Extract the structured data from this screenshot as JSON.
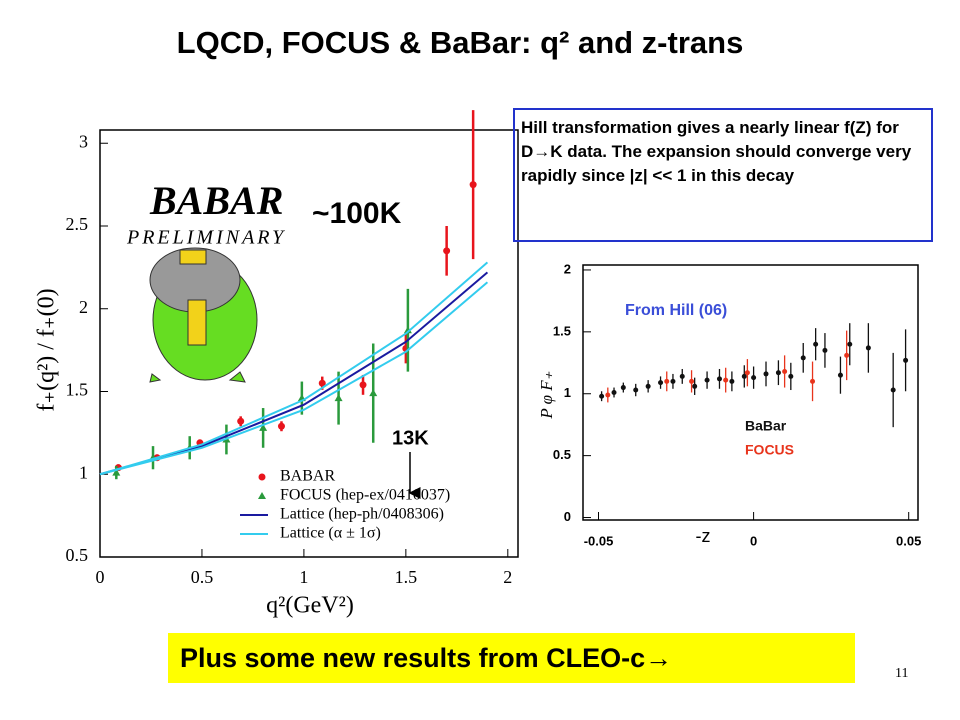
{
  "title": "LQCD, FOCUS & BaBar: q² and z-trans",
  "note": "Hill transformation gives a nearly linear f(Z) for D→K data. The expansion should converge very rapidly since |z| << 1 in this decay",
  "footer": "Plus some new results from CLEO-c→",
  "page_number": "11",
  "chart_data": [
    {
      "type": "scatter",
      "logo": [
        "BABAR",
        "PRELIMINARY"
      ],
      "xlabel": "q²(GeV²)",
      "ylabel": "f₊(q²) / f₊(0)",
      "annotations": [
        "~100K",
        "13K"
      ],
      "xlim": [
        0,
        2.05
      ],
      "ylim": [
        0.5,
        3.08
      ],
      "xticks": [
        0,
        0.5,
        1,
        1.5,
        2
      ],
      "yticks": [
        0.5,
        1,
        1.5,
        2,
        2.5,
        3
      ],
      "series": [
        {
          "name": "BABAR",
          "color": "#e8141c",
          "marker": "circle",
          "x": [
            0.09,
            0.28,
            0.49,
            0.69,
            0.89,
            1.09,
            1.29,
            1.5,
            1.7,
            1.83
          ],
          "values": [
            1.04,
            1.1,
            1.19,
            1.32,
            1.29,
            1.55,
            1.54,
            1.76,
            2.35,
            2.75
          ],
          "errors": [
            0.02,
            0.02,
            0.02,
            0.03,
            0.03,
            0.04,
            0.06,
            0.09,
            0.15,
            0.45
          ]
        },
        {
          "name": "FOCUS (hep-ex/0410037)",
          "color": "#2a9a3c",
          "marker": "triangle",
          "x": [
            0.08,
            0.26,
            0.44,
            0.62,
            0.8,
            0.99,
            1.17,
            1.34,
            1.51
          ],
          "values": [
            1.01,
            1.1,
            1.16,
            1.21,
            1.28,
            1.46,
            1.46,
            1.49,
            1.87
          ],
          "errors": [
            0.04,
            0.07,
            0.07,
            0.09,
            0.12,
            0.1,
            0.16,
            0.3,
            0.25
          ]
        },
        {
          "name": "Lattice (hep-ph/0408306)",
          "color": "#1a1aa0",
          "marker": "line",
          "x": [
            0,
            0.5,
            1,
            1.5,
            1.9
          ],
          "values": [
            1.0,
            1.17,
            1.42,
            1.8,
            2.22
          ]
        },
        {
          "name": "Lattice (α ± 1σ)",
          "color": "#33ccee",
          "marker": "band",
          "x": [
            0,
            0.5,
            1,
            1.5,
            1.9
          ],
          "upper": [
            1.0,
            1.18,
            1.45,
            1.85,
            2.28
          ],
          "lower": [
            1.0,
            1.16,
            1.39,
            1.74,
            2.16
          ]
        }
      ]
    },
    {
      "type": "scatter",
      "annotations": [
        "From Hill (06)"
      ],
      "xlabel": "-z",
      "ylabel": "P φ F₊",
      "xlim": [
        -0.055,
        0.053
      ],
      "ylim": [
        -0.02,
        2.04
      ],
      "xticks": [
        -0.05,
        0,
        0.05
      ],
      "yticks": [
        0,
        0.5,
        1,
        1.5,
        2
      ],
      "series": [
        {
          "name": "BaBar",
          "color": "#111111",
          "marker": "dot",
          "x": [
            -0.049,
            -0.045,
            -0.042,
            -0.038,
            -0.034,
            -0.03,
            -0.026,
            -0.023,
            -0.019,
            -0.015,
            -0.011,
            -0.007,
            -0.003,
            0.0,
            0.004,
            0.008,
            0.012,
            0.016,
            0.02,
            0.023,
            0.028,
            0.031,
            0.037,
            0.045,
            0.049
          ],
          "values": [
            0.98,
            1.01,
            1.05,
            1.03,
            1.06,
            1.09,
            1.1,
            1.14,
            1.06,
            1.11,
            1.12,
            1.1,
            1.14,
            1.13,
            1.16,
            1.17,
            1.14,
            1.29,
            1.4,
            1.35,
            1.15,
            1.4,
            1.37,
            1.03,
            1.27
          ],
          "errors": [
            0.04,
            0.04,
            0.04,
            0.05,
            0.05,
            0.05,
            0.06,
            0.06,
            0.07,
            0.07,
            0.08,
            0.08,
            0.09,
            0.09,
            0.1,
            0.1,
            0.11,
            0.12,
            0.13,
            0.14,
            0.15,
            0.17,
            0.2,
            0.3,
            0.25
          ]
        },
        {
          "name": "FOCUS",
          "color": "#e8341c",
          "marker": "dot",
          "x": [
            -0.047,
            -0.028,
            -0.02,
            -0.009,
            -0.002,
            0.01,
            0.019,
            0.03
          ],
          "values": [
            0.99,
            1.1,
            1.1,
            1.11,
            1.17,
            1.18,
            1.1,
            1.31
          ],
          "errors": [
            0.06,
            0.08,
            0.09,
            0.1,
            0.11,
            0.13,
            0.16,
            0.2
          ]
        }
      ]
    }
  ]
}
